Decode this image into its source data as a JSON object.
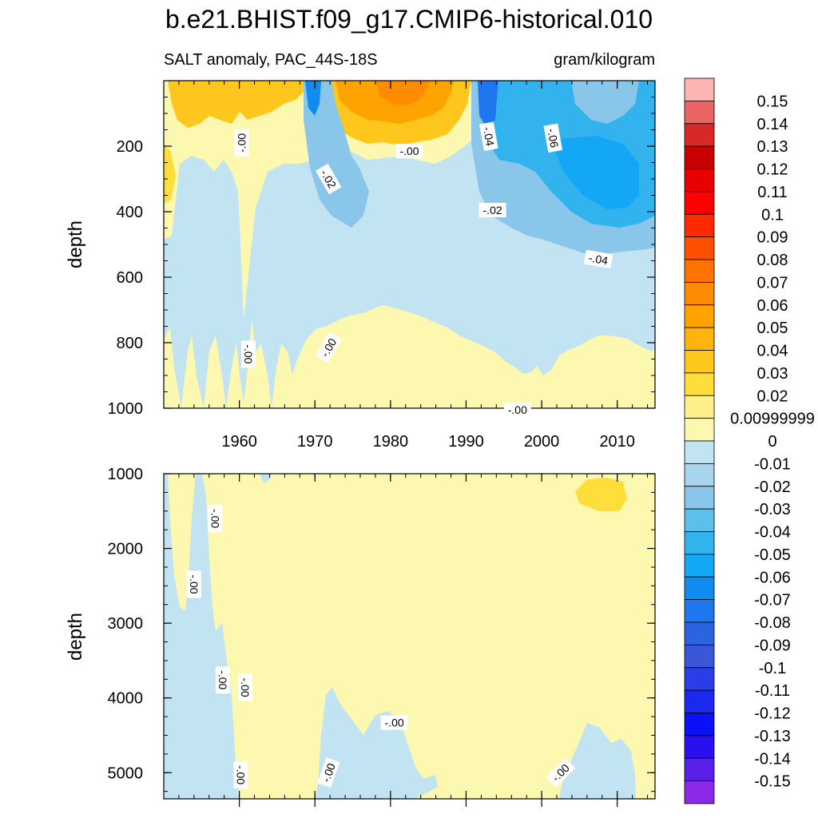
{
  "chart_data": {
    "type": "contour",
    "title": "b.e21.BHIST.f09_g17.CMIP6-historical.010",
    "left_subtitle": "SALT anomaly, PAC_44S-18S",
    "right_subtitle": "gram/kilogram",
    "xlabel": "",
    "ylabel": "depth",
    "panels": [
      {
        "name": "upper-ocean",
        "xlim": [
          1950,
          2015
        ],
        "ylim": [
          0,
          1000
        ],
        "y_inverted": true,
        "x_ticks": [
          1960,
          1970,
          1980,
          1990,
          2000,
          2010
        ],
        "x_tick_labels": [
          "1960",
          "1970",
          "1980",
          "1990",
          "2000",
          "2010"
        ],
        "y_ticks": [
          200,
          400,
          600,
          800,
          1000
        ],
        "y_tick_labels": [
          "200",
          "400",
          "600",
          "800",
          "1000"
        ],
        "contour_labels": [
          {
            "text": "-.00",
            "x": 1960.3,
            "y": 190,
            "angle": -90
          },
          {
            "text": "-.02",
            "x": 1971.8,
            "y": 300,
            "angle": 60
          },
          {
            "text": "-.00",
            "x": 1982.5,
            "y": 215,
            "angle": 0
          },
          {
            "text": "-.04",
            "x": 1993.0,
            "y": 170,
            "angle": 80
          },
          {
            "text": "-.06",
            "x": 2001.5,
            "y": 175,
            "angle": 80
          },
          {
            "text": "-.02",
            "x": 1993.5,
            "y": 395,
            "angle": 0
          },
          {
            "text": "-.04",
            "x": 2007.5,
            "y": 545,
            "angle": 10
          },
          {
            "text": "-.00",
            "x": 1961.2,
            "y": 835,
            "angle": 90
          },
          {
            "text": "-.00",
            "x": 1971.8,
            "y": 815,
            "angle": -60
          },
          {
            "text": "-.00",
            "x": 1996.8,
            "y": 1005,
            "angle": 0
          }
        ]
      },
      {
        "name": "deep-ocean",
        "xlim": [
          1950,
          2015
        ],
        "ylim": [
          1000,
          5350
        ],
        "y_inverted": true,
        "y_ticks": [
          1000,
          2000,
          3000,
          4000,
          5000
        ],
        "y_tick_labels": [
          "1000",
          "2000",
          "3000",
          "4000",
          "5000"
        ],
        "contour_labels": [
          {
            "text": "-.00",
            "x": 1956.8,
            "y": 1600,
            "angle": 90
          },
          {
            "text": "-.00",
            "x": 1954.0,
            "y": 2480,
            "angle": 90
          },
          {
            "text": "-.00",
            "x": 1957.8,
            "y": 3760,
            "angle": 90
          },
          {
            "text": "-.00",
            "x": 1960.8,
            "y": 3860,
            "angle": 90
          },
          {
            "text": "-.00",
            "x": 1960.2,
            "y": 5030,
            "angle": 90
          },
          {
            "text": "-.00",
            "x": 1971.8,
            "y": 5000,
            "angle": -70
          },
          {
            "text": "-.00",
            "x": 1980.5,
            "y": 4330,
            "angle": 0
          },
          {
            "text": "-.00",
            "x": 2002.5,
            "y": 5000,
            "angle": -45
          }
        ]
      }
    ],
    "colorbar": {
      "levels": [
        "0.15",
        "0.14",
        "0.13",
        "0.12",
        "0.11",
        "0.1",
        "0.09",
        "0.08",
        "0.07",
        "0.06",
        "0.05",
        "0.04",
        "0.03",
        "0.02",
        "0.00999999",
        "0",
        "-0.01",
        "-0.02",
        "-0.03",
        "-0.04",
        "-0.05",
        "-0.06",
        "-0.07",
        "-0.08",
        "-0.09",
        "-0.1",
        "-0.11",
        "-0.12",
        "-0.13",
        "-0.14",
        "-0.15"
      ],
      "colors": [
        "#fdb4b4",
        "#ea6464",
        "#d82828",
        "#c80000",
        "#e80000",
        "#ff0000",
        "#ff2a00",
        "#ff5000",
        "#ff7300",
        "#ff8c00",
        "#ffa300",
        "#ffb30f",
        "#ffc61e",
        "#ffdd3a",
        "#fff08c",
        "#fdf8b0",
        "#c2e4f2",
        "#a7d5ee",
        "#8ac6ea",
        "#5ebeec",
        "#33b3ee",
        "#14a7f5",
        "#0f8cf0",
        "#1f76ee",
        "#2b64e0",
        "#3a57d8",
        "#2a3ee8",
        "#1a28f0",
        "#0a10f8",
        "#2a10f0",
        "#5a20e8",
        "#8a2ae6"
      ]
    }
  }
}
